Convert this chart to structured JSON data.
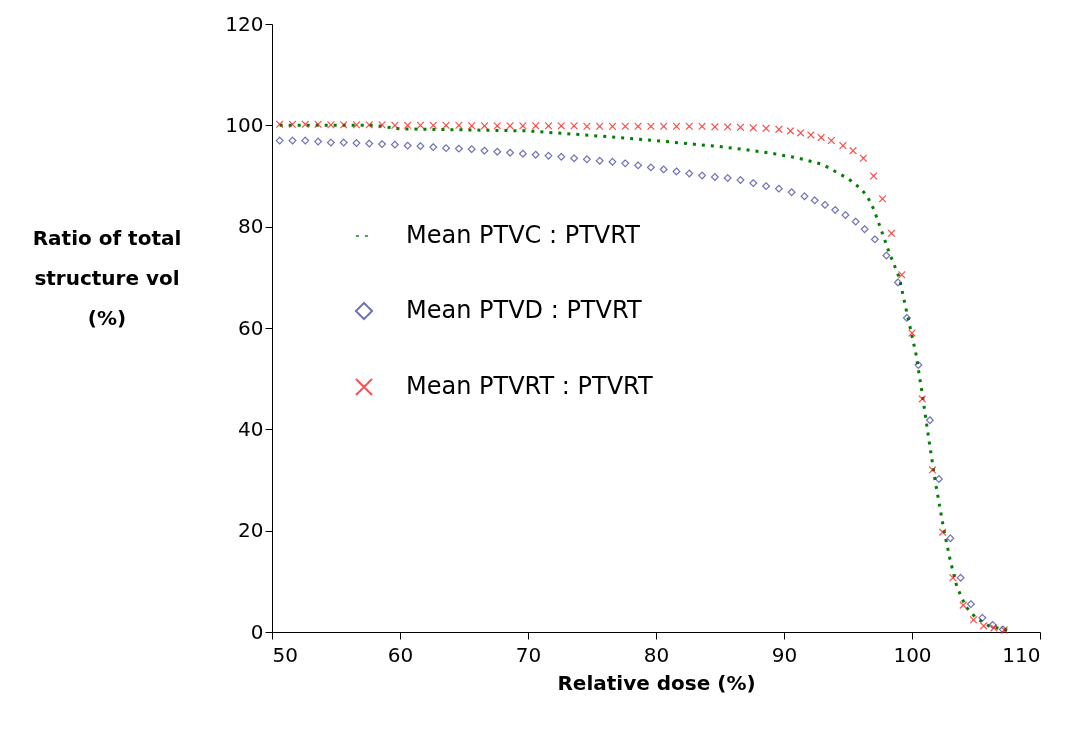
{
  "chart_data": {
    "type": "scatter",
    "xlabel": "Relative dose (%)",
    "ylabel": "Ratio of total\nstructure vol\n(%)",
    "xlim": [
      50,
      110
    ],
    "xticks": [
      50,
      60,
      70,
      80,
      90,
      100,
      110
    ],
    "ylim": [
      0,
      120
    ],
    "yticks": [
      0,
      20,
      40,
      60,
      80,
      100,
      120
    ],
    "grid": false,
    "legend": "left",
    "series": [
      {
        "name": "Mean PTVC : PTVRT",
        "type": "line",
        "line_style": "dotted",
        "marker": "none",
        "color": "#008000",
        "x": [
          50.6,
          58,
          60,
          65,
          70,
          75,
          80,
          82,
          85,
          87,
          89,
          91,
          93,
          95,
          96,
          96.5,
          97,
          97.5,
          98.2,
          99,
          99.6,
          100.3,
          100.8,
          101.2,
          101.8,
          102.5,
          103,
          103.5,
          104.2,
          105,
          106,
          107,
          107.6
        ],
        "values": [
          100,
          100,
          99.3,
          99.1,
          98.9,
          98,
          97,
          96.5,
          95.8,
          95.2,
          94.5,
          93.6,
          92.3,
          89.5,
          87.5,
          86,
          83.5,
          80,
          75,
          70,
          63,
          55,
          47,
          40,
          30,
          20,
          14,
          9,
          5,
          2.8,
          1.2,
          0.6,
          0.3
        ]
      },
      {
        "name": "Mean PTVD : PTVRT",
        "marker": "diamond",
        "color": "#333399",
        "x": [
          50.6,
          51.6,
          52.6,
          53.6,
          54.6,
          55.6,
          56.6,
          57.6,
          58.6,
          59.6,
          60.6,
          61.6,
          62.6,
          63.6,
          64.6,
          65.6,
          66.6,
          67.6,
          68.6,
          69.6,
          70.6,
          71.6,
          72.6,
          73.6,
          74.6,
          75.6,
          76.6,
          77.6,
          78.6,
          79.6,
          80.6,
          81.6,
          82.6,
          83.6,
          84.6,
          85.6,
          86.6,
          87.6,
          88.6,
          89.6,
          90.6,
          91.6,
          92.4,
          93.2,
          94,
          94.8,
          95.6,
          96.3,
          97.1,
          98,
          98.9,
          99.6,
          100.5,
          101.4,
          102.1,
          103,
          103.8,
          104.6,
          105.5,
          106.3,
          107.1
        ],
        "values": [
          97,
          97,
          97,
          96.8,
          96.6,
          96.6,
          96.5,
          96.4,
          96.3,
          96.2,
          96,
          95.9,
          95.7,
          95.5,
          95.4,
          95.3,
          95,
          94.8,
          94.6,
          94.4,
          94.2,
          94,
          93.8,
          93.5,
          93.3,
          93,
          92.8,
          92.5,
          92.1,
          91.7,
          91.3,
          90.9,
          90.5,
          90.1,
          89.8,
          89.6,
          89.2,
          88.6,
          88,
          87.5,
          86.8,
          86,
          85.2,
          84.3,
          83.3,
          82.3,
          81,
          79.5,
          77.5,
          74.3,
          69,
          62,
          52.7,
          41.8,
          30.2,
          18.5,
          10.7,
          5.5,
          2.8,
          1.4,
          0.5
        ]
      },
      {
        "name": "Mean PTVRT : PTVRT",
        "marker": "cross",
        "color": "#ff0000",
        "x": [
          50.6,
          51.6,
          52.6,
          53.6,
          54.6,
          55.6,
          56.6,
          57.6,
          58.6,
          59.6,
          60.6,
          61.6,
          62.6,
          63.6,
          64.6,
          65.6,
          66.6,
          67.6,
          68.6,
          69.6,
          70.6,
          71.6,
          72.6,
          73.6,
          74.6,
          75.6,
          76.6,
          77.6,
          78.6,
          79.6,
          80.6,
          81.6,
          82.6,
          83.6,
          84.6,
          85.6,
          86.6,
          87.6,
          88.6,
          89.6,
          90.5,
          91.3,
          92.1,
          92.9,
          93.7,
          94.6,
          95.4,
          96.2,
          97,
          97.7,
          98.4,
          99.2,
          100,
          100.8,
          101.6,
          102.4,
          103.2,
          104,
          104.8,
          105.6,
          106.4,
          107.2
        ],
        "values": [
          100.2,
          100.2,
          100.2,
          100.2,
          100.1,
          100.1,
          100.1,
          100.1,
          100.1,
          100,
          100,
          100,
          100,
          100,
          100,
          99.9,
          99.9,
          99.9,
          99.9,
          99.9,
          99.9,
          99.9,
          99.9,
          99.9,
          99.8,
          99.8,
          99.8,
          99.8,
          99.8,
          99.8,
          99.8,
          99.8,
          99.8,
          99.8,
          99.7,
          99.7,
          99.6,
          99.5,
          99.4,
          99.2,
          98.9,
          98.5,
          98.1,
          97.6,
          97,
          96,
          95,
          93.5,
          90,
          85.5,
          78.7,
          70.5,
          59,
          46,
          32,
          19.7,
          10.7,
          5.3,
          2.4,
          1.2,
          0.8,
          0.4
        ]
      }
    ]
  }
}
